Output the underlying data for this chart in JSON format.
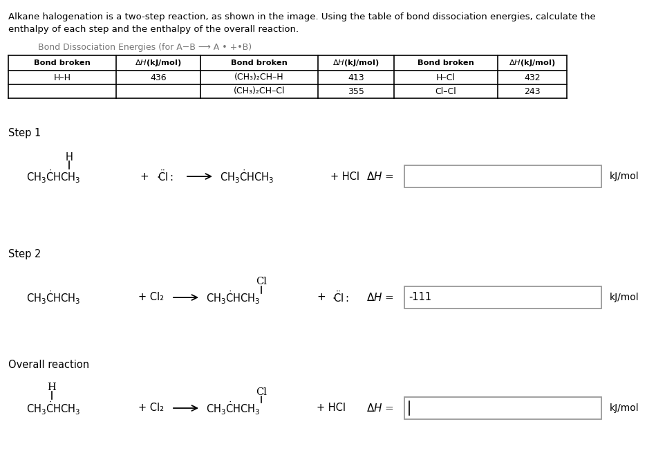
{
  "bg_color": "#ffffff",
  "intro_text_line1": "Alkane halogenation is a two-step reaction, as shown in the image. Using the table of bond dissociation energies, calculate the",
  "intro_text_line2": "enthalpy of each step and the enthalpy of the overall reaction.",
  "table_title": "Bond Dissociation Energies (for A−B ⟶ A • +•B)",
  "step1_label": "Step 1",
  "step2_label": "Step 2",
  "overall_label": "Overall reaction",
  "box_edge_color": "#999999",
  "step2_answer": "-111"
}
